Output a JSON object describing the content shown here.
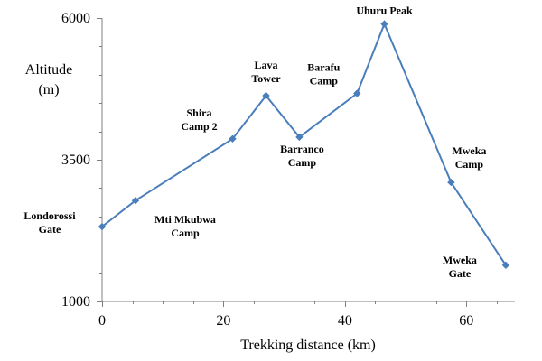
{
  "chart_data": {
    "type": "line",
    "title": "",
    "xlabel": "Trekking distance  (km)",
    "ylabel_line1": "Altitude",
    "ylabel_line2": "(m)",
    "xlim": [
      0,
      68
    ],
    "ylim": [
      1000,
      6000
    ],
    "x_ticks": [
      0,
      20,
      40,
      60
    ],
    "x_minor_ticks": [
      0,
      5,
      10,
      15,
      20,
      25,
      30,
      35,
      40,
      45,
      50,
      55,
      60,
      65
    ],
    "y_ticks": [
      1000,
      3500,
      6000
    ],
    "y_minor_ticks": [
      1000,
      1500,
      2000,
      2500,
      3000,
      3500,
      4000,
      4500,
      5000,
      5500,
      6000
    ],
    "y_tick_labels": [
      "1000",
      "3500",
      "6000"
    ],
    "x_tick_labels": [
      "0",
      "20",
      "40",
      "60"
    ],
    "grid": false,
    "legend": "none",
    "series_color": "#4a7ebb",
    "series": [
      {
        "name": "Altitude",
        "points": [
          {
            "x": 0,
            "y": 2320,
            "label_lines": [
              "Londorossi",
              "Gate"
            ],
            "label_anchor": "left-of"
          },
          {
            "x": 5.5,
            "y": 2780,
            "label_lines": [
              "Mti Mkubwa",
              "Camp"
            ],
            "label_anchor": "below-right"
          },
          {
            "x": 21.5,
            "y": 3870,
            "label_lines": [
              "Shira",
              "Camp 2"
            ],
            "label_anchor": "above-left"
          },
          {
            "x": 27,
            "y": 4630,
            "label_lines": [
              "Lava",
              "Tower"
            ],
            "label_anchor": "above"
          },
          {
            "x": 32.5,
            "y": 3900,
            "label_lines": [
              "Barranco",
              "Camp"
            ],
            "label_anchor": "below"
          },
          {
            "x": 42,
            "y": 4670,
            "label_lines": [
              "Barafu",
              "Camp"
            ],
            "label_anchor": "above-left"
          },
          {
            "x": 46.5,
            "y": 5895,
            "label_lines": [
              "Uhuru Peak"
            ],
            "label_anchor": "above"
          },
          {
            "x": 57.5,
            "y": 3100,
            "label_lines": [
              "Mweka",
              "Camp"
            ],
            "label_anchor": "above-right"
          },
          {
            "x": 66.5,
            "y": 1640,
            "label_lines": [
              "Mweka",
              "Gate"
            ],
            "label_anchor": "below-left"
          }
        ]
      }
    ]
  }
}
